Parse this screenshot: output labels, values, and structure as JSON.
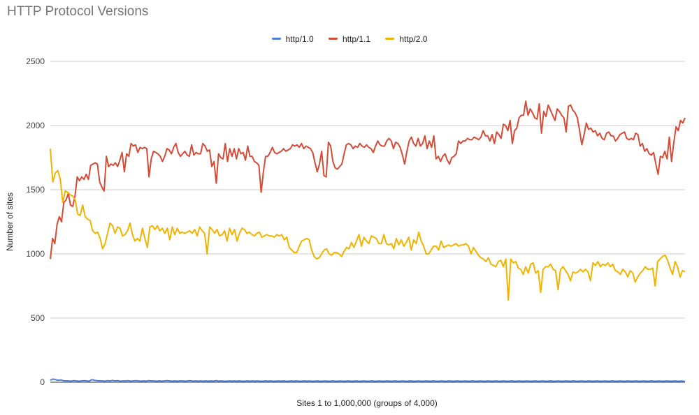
{
  "chart_data": {
    "type": "line",
    "title": "HTTP Protocol Versions",
    "xlabel": "Sites 1 to 1,000,000 (groups of 4,000)",
    "ylabel": "Number of sites",
    "ylim": [
      0,
      2500
    ],
    "yticks": [
      "0",
      "500",
      "1000",
      "1500",
      "2000",
      "2500"
    ],
    "grid": true,
    "legend_position": "top-center",
    "series": [
      {
        "name": "http/1.0",
        "color": "#4a7fdc",
        "values": [
          15,
          25,
          20,
          15,
          18,
          12,
          10,
          10,
          8,
          12,
          10,
          8,
          10,
          12,
          10,
          8,
          20,
          15,
          12,
          10,
          10,
          8,
          12,
          10,
          14,
          10,
          12,
          8,
          10,
          10,
          12,
          8,
          10,
          12,
          10,
          8,
          10,
          8,
          12,
          10,
          10,
          8,
          10,
          8,
          10,
          12,
          10,
          8,
          10,
          8,
          10,
          10,
          8,
          10,
          12,
          8,
          10,
          8,
          10,
          8,
          10,
          8,
          10,
          8,
          12,
          8,
          10,
          8,
          8,
          10,
          8,
          10,
          8,
          10,
          8,
          8,
          10,
          8,
          10,
          8,
          10,
          8,
          8,
          10,
          8,
          10,
          8,
          8,
          10,
          8,
          10,
          8,
          8,
          10,
          8,
          10,
          8,
          8,
          10,
          8,
          10,
          8,
          8,
          10,
          8,
          8,
          10,
          8,
          8,
          10,
          8,
          8,
          10,
          8,
          8,
          10,
          8,
          8,
          10,
          8,
          8,
          10,
          8,
          8,
          10,
          8,
          8,
          10,
          8,
          8,
          10,
          8,
          8,
          10,
          8,
          8,
          10,
          8,
          8,
          10,
          8,
          8,
          10,
          8,
          8,
          10,
          8,
          8,
          10,
          8,
          8,
          10,
          8,
          8,
          10,
          8,
          8,
          10,
          8,
          8,
          10,
          8,
          8,
          10,
          8,
          8,
          10,
          8,
          8,
          10,
          8,
          8,
          10,
          8,
          8,
          10,
          8,
          8,
          10,
          8,
          8,
          10,
          8,
          8,
          10,
          8,
          8,
          10,
          8,
          8,
          10,
          8,
          8,
          10,
          8,
          8,
          10,
          8,
          8,
          10,
          8,
          8,
          10,
          8,
          8,
          10,
          8,
          8,
          10,
          8,
          8,
          10,
          8,
          8,
          10,
          8,
          8,
          10,
          8,
          8,
          10,
          8,
          8,
          10,
          8,
          8,
          10,
          8,
          8,
          10,
          8,
          8,
          10,
          8,
          8,
          10,
          8,
          8,
          10,
          8,
          8,
          10,
          8,
          8,
          10,
          5
        ]
      },
      {
        "name": "http/1.1",
        "color": "#d44b38",
        "values": [
          960,
          1120,
          1080,
          1230,
          1290,
          1250,
          1400,
          1420,
          1470,
          1380,
          1370,
          1450,
          1600,
          1570,
          1600,
          1580,
          1620,
          1580,
          1690,
          1700,
          1710,
          1700,
          1560,
          1520,
          1490,
          1760,
          1680,
          1700,
          1690,
          1710,
          1680,
          1730,
          1790,
          1640,
          1780,
          1760,
          1860,
          1840,
          1850,
          1790,
          1830,
          1820,
          1830,
          1820,
          1600,
          1740,
          1800,
          1790,
          1780,
          1760,
          1720,
          1760,
          1820,
          1810,
          1780,
          1830,
          1860,
          1790,
          1760,
          1780,
          1800,
          1770,
          1760,
          1850,
          1770,
          1790,
          1780,
          1780,
          1860,
          1840,
          1800,
          1810,
          1680,
          1720,
          1550,
          1780,
          1750,
          1740,
          1860,
          1720,
          1820,
          1760,
          1820,
          1740,
          1820,
          1780,
          1790,
          1730,
          1840,
          1760,
          1760,
          1720,
          1710,
          1690,
          1480,
          1640,
          1760,
          1760,
          1790,
          1830,
          1790,
          1780,
          1790,
          1800,
          1820,
          1800,
          1810,
          1820,
          1850,
          1840,
          1850,
          1830,
          1860,
          1820,
          1840,
          1830,
          1820,
          1790,
          1710,
          1640,
          1700,
          1800,
          1610,
          1600,
          1870,
          1840,
          1720,
          1670,
          1660,
          1680,
          1700,
          1780,
          1850,
          1860,
          1850,
          1820,
          1840,
          1830,
          1860,
          1840,
          1830,
          1850,
          1830,
          1820,
          1790,
          1840,
          1880,
          1850,
          1840,
          1840,
          1880,
          1900,
          1880,
          1820,
          1870,
          1860,
          1830,
          1770,
          1700,
          1800,
          1880,
          1910,
          1860,
          1840,
          1900,
          1840,
          1860,
          1920,
          1820,
          1880,
          1830,
          1920,
          1740,
          1760,
          1720,
          1760,
          1780,
          1730,
          1700,
          1750,
          1760,
          1780,
          1880,
          1860,
          1880,
          1880,
          1900,
          1890,
          1890,
          1910,
          1900,
          1890,
          1910,
          1960,
          1920,
          1920,
          1880,
          1930,
          1860,
          1950,
          1930,
          1900,
          2010,
          2000,
          1960,
          2040,
          1860,
          1960,
          1980,
          2060,
          2080,
          2080,
          2190,
          2080,
          2130,
          2100,
          2060,
          2050,
          2170,
          1940,
          2110,
          2070,
          2160,
          2120,
          2080,
          2040,
          2130,
          2110,
          2080,
          2060,
          1950,
          2150,
          2160,
          2120,
          2100,
          2060,
          1960,
          1850,
          1930,
          2020,
          1970,
          1980,
          1950,
          1960,
          1920,
          1940,
          1900,
          1890,
          1940,
          1950,
          1920,
          1920,
          1880,
          1900,
          1930,
          1940,
          1950,
          1900,
          1890,
          1900,
          1890,
          1940,
          1930,
          1840,
          1860,
          1800,
          1820,
          1780,
          1770,
          1790,
          1700,
          1620,
          1760,
          1750,
          1800,
          1740,
          1910,
          1720,
          1870,
          1990,
          1960,
          2040,
          2020,
          2060
        ]
      },
      {
        "name": "http/2.0",
        "color": "#f0b400",
        "values": [
          1820,
          1560,
          1630,
          1650,
          1580,
          1400,
          1490,
          1480,
          1460,
          1450,
          1420,
          1310,
          1300,
          1380,
          1290,
          1270,
          1260,
          1180,
          1160,
          1170,
          1120,
          1040,
          1080,
          1160,
          1240,
          1220,
          1160,
          1210,
          1200,
          1140,
          1150,
          1180,
          1240,
          1150,
          1100,
          1120,
          1100,
          1200,
          1120,
          1050,
          1210,
          1220,
          1190,
          1220,
          1180,
          1200,
          1160,
          1200,
          1110,
          1210,
          1150,
          1200,
          1160,
          1170,
          1160,
          1170,
          1180,
          1160,
          1190,
          1140,
          1210,
          1180,
          1160,
          1000,
          1210,
          1190,
          1160,
          1190,
          1140,
          1150,
          1180,
          1100,
          1200,
          1150,
          1190,
          1100,
          1160,
          1200,
          1190,
          1160,
          1170,
          1150,
          1140,
          1160,
          1170,
          1130,
          1140,
          1150,
          1140,
          1140,
          1130,
          1150,
          1140,
          1150,
          1110,
          1130,
          1050,
          1030,
          1010,
          1010,
          1060,
          1100,
          1110,
          1120,
          1110,
          1030,
          980,
          960,
          970,
          1000,
          1030,
          1040,
          1000,
          990,
          1010,
          1010,
          1000,
          980,
          1020,
          1050,
          1040,
          1090,
          1050,
          1100,
          1150,
          1060,
          1130,
          1100,
          1080,
          1140,
          1130,
          1120,
          1080,
          1080,
          1150,
          1080,
          1070,
          1080,
          1040,
          1120,
          1070,
          1110,
          1060,
          1090,
          1130,
          1030,
          1110,
          1080,
          1170,
          1100,
          1060,
          1000,
          1000,
          1030,
          1060,
          1060,
          1030,
          1100,
          1050,
          1060,
          1070,
          1060,
          1070,
          1080,
          1060,
          1070,
          1070,
          1080,
          1060,
          1000,
          1050,
          1020,
          990,
          970,
          960,
          940,
          970,
          920,
          910,
          900,
          940,
          950,
          900,
          960,
          640,
          960,
          930,
          940,
          890,
          880,
          840,
          900,
          850,
          920,
          930,
          850,
          870,
          700,
          880,
          900,
          900,
          920,
          880,
          870,
          720,
          880,
          900,
          870,
          840,
          790,
          860,
          850,
          860,
          880,
          860,
          880,
          860,
          790,
          930,
          910,
          940,
          900,
          920,
          910,
          930,
          900,
          920,
          870,
          860,
          840,
          880,
          860,
          820,
          870,
          850,
          780,
          820,
          850,
          870,
          900,
          880,
          880,
          890,
          750,
          940,
          960,
          980,
          990,
          950,
          890,
          840,
          940,
          900,
          820,
          870,
          860
        ]
      }
    ]
  }
}
